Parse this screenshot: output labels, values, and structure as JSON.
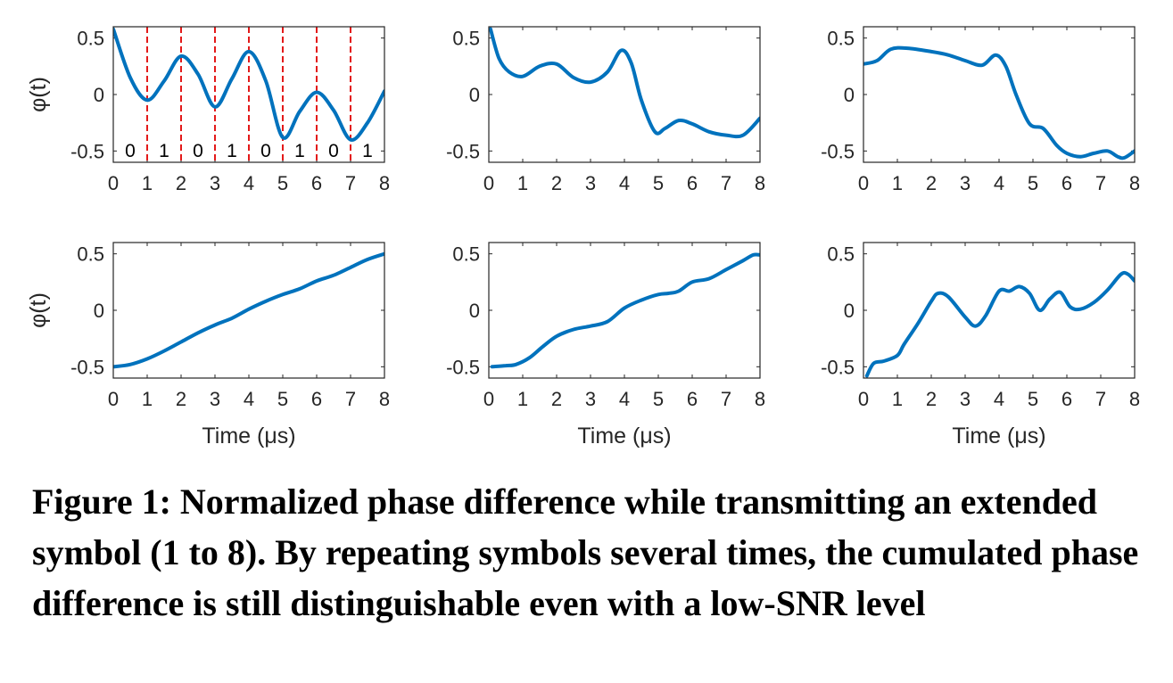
{
  "chart_data": [
    {
      "type": "line",
      "ylabel": "φ(t)",
      "xlabel": "",
      "xlim": [
        0,
        8
      ],
      "ylim": [
        -0.6,
        0.6
      ],
      "xticks": [
        "0",
        "1",
        "2",
        "3",
        "4",
        "5",
        "6",
        "7",
        "8"
      ],
      "yticks": [
        "0.5",
        "0",
        "-0.5"
      ],
      "grid": false,
      "markers": [
        1,
        2,
        3,
        4,
        5,
        6,
        7
      ],
      "bits": [
        "0",
        "1",
        "0",
        "1",
        "0",
        "1",
        "0",
        "1"
      ],
      "series": [
        {
          "color": "#0072BD",
          "x": [
            0,
            0.5,
            1,
            1.5,
            2,
            2.5,
            3,
            3.5,
            4,
            4.5,
            5,
            5.5,
            6,
            6.5,
            7,
            7.5,
            8
          ],
          "y": [
            0.58,
            0.15,
            -0.05,
            0.12,
            0.34,
            0.18,
            -0.11,
            0.14,
            0.38,
            0.12,
            -0.38,
            -0.15,
            0.02,
            -0.14,
            -0.4,
            -0.25,
            0.03
          ]
        }
      ]
    },
    {
      "type": "line",
      "ylabel": "",
      "xlabel": "",
      "xlim": [
        0,
        8
      ],
      "ylim": [
        -0.6,
        0.6
      ],
      "xticks": [
        "0",
        "1",
        "2",
        "3",
        "4",
        "5",
        "6",
        "7",
        "8"
      ],
      "yticks": [
        "0.5",
        "0",
        "-0.5"
      ],
      "grid": false,
      "series": [
        {
          "color": "#0072BD",
          "x": [
            0.05,
            0.3,
            0.6,
            1,
            1.5,
            2,
            2.5,
            3,
            3.5,
            3.9,
            4.2,
            4.5,
            4.9,
            5.2,
            5.6,
            6,
            6.5,
            7,
            7.5,
            8
          ],
          "y": [
            0.58,
            0.32,
            0.2,
            0.16,
            0.25,
            0.27,
            0.15,
            0.11,
            0.2,
            0.39,
            0.28,
            -0.05,
            -0.33,
            -0.3,
            -0.23,
            -0.26,
            -0.33,
            -0.36,
            -0.36,
            -0.21
          ]
        }
      ]
    },
    {
      "type": "line",
      "ylabel": "",
      "xlabel": "",
      "xlim": [
        0,
        8
      ],
      "ylim": [
        -0.6,
        0.6
      ],
      "xticks": [
        "0",
        "1",
        "2",
        "3",
        "4",
        "5",
        "6",
        "7",
        "8"
      ],
      "yticks": [
        "0.5",
        "0",
        "-0.5"
      ],
      "grid": false,
      "series": [
        {
          "color": "#0072BD",
          "x": [
            0,
            0.4,
            0.8,
            1.3,
            2,
            2.5,
            3,
            3.5,
            3.9,
            4.2,
            4.5,
            4.9,
            5.3,
            5.7,
            6,
            6.4,
            6.8,
            7.2,
            7.5,
            7.7,
            8
          ],
          "y": [
            0.27,
            0.3,
            0.4,
            0.41,
            0.38,
            0.35,
            0.3,
            0.26,
            0.35,
            0.25,
            0.0,
            -0.26,
            -0.3,
            -0.45,
            -0.52,
            -0.55,
            -0.52,
            -0.5,
            -0.55,
            -0.56,
            -0.5
          ]
        }
      ]
    },
    {
      "type": "line",
      "ylabel": "φ(t)",
      "xlabel": "Time (μs)",
      "xlim": [
        0,
        8
      ],
      "ylim": [
        -0.6,
        0.6
      ],
      "xticks": [
        "0",
        "1",
        "2",
        "3",
        "4",
        "5",
        "6",
        "7",
        "8"
      ],
      "yticks": [
        "0.5",
        "0",
        "-0.5"
      ],
      "grid": false,
      "series": [
        {
          "color": "#0072BD",
          "x": [
            0,
            0.5,
            1,
            1.5,
            2,
            2.5,
            3,
            3.5,
            4,
            4.5,
            5,
            5.5,
            6,
            6.5,
            7,
            7.5,
            8
          ],
          "y": [
            -0.5,
            -0.48,
            -0.43,
            -0.36,
            -0.28,
            -0.2,
            -0.13,
            -0.07,
            0.01,
            0.08,
            0.14,
            0.19,
            0.26,
            0.31,
            0.38,
            0.45,
            0.5
          ]
        }
      ]
    },
    {
      "type": "line",
      "ylabel": "",
      "xlabel": "Time (μs)",
      "xlim": [
        0,
        8
      ],
      "ylim": [
        -0.6,
        0.6
      ],
      "xticks": [
        "0",
        "1",
        "2",
        "3",
        "4",
        "5",
        "6",
        "7",
        "8"
      ],
      "yticks": [
        "0.5",
        "0",
        "-0.5"
      ],
      "grid": false,
      "series": [
        {
          "color": "#0072BD",
          "x": [
            0.1,
            0.5,
            0.8,
            1.2,
            1.6,
            2,
            2.5,
            3,
            3.5,
            4,
            4.5,
            5,
            5.3,
            5.6,
            6,
            6.5,
            7,
            7.5,
            7.8,
            8
          ],
          "y": [
            -0.5,
            -0.49,
            -0.48,
            -0.42,
            -0.32,
            -0.23,
            -0.17,
            -0.14,
            -0.1,
            0.02,
            0.09,
            0.14,
            0.15,
            0.17,
            0.25,
            0.28,
            0.36,
            0.44,
            0.49,
            0.49
          ]
        }
      ]
    },
    {
      "type": "line",
      "ylabel": "",
      "xlabel": "Time (μs)",
      "xlim": [
        0,
        8
      ],
      "ylim": [
        -0.6,
        0.6
      ],
      "xticks": [
        "0",
        "1",
        "2",
        "3",
        "4",
        "5",
        "6",
        "7",
        "8"
      ],
      "yticks": [
        "0.5",
        "0",
        "-0.5"
      ],
      "grid": false,
      "series": [
        {
          "color": "#0072BD",
          "x": [
            0.1,
            0.3,
            0.6,
            1,
            1.2,
            1.6,
            2,
            2.2,
            2.5,
            3,
            3.3,
            3.6,
            4,
            4.3,
            4.6,
            4.9,
            5.2,
            5.5,
            5.8,
            6.1,
            6.4,
            6.8,
            7.2,
            7.6,
            7.8,
            8
          ],
          "y": [
            -0.58,
            -0.47,
            -0.45,
            -0.4,
            -0.3,
            -0.12,
            0.08,
            0.15,
            0.12,
            -0.06,
            -0.14,
            -0.05,
            0.17,
            0.17,
            0.21,
            0.15,
            0.0,
            0.1,
            0.16,
            0.03,
            0.01,
            0.07,
            0.18,
            0.32,
            0.32,
            0.26
          ]
        }
      ]
    }
  ],
  "caption": "Figure 1: Normalized phase difference while transmitting an extended symbol (1 to 8). By repeating symbols several times, the cumulated phase difference is still distinguishable even with a low-SNR level"
}
